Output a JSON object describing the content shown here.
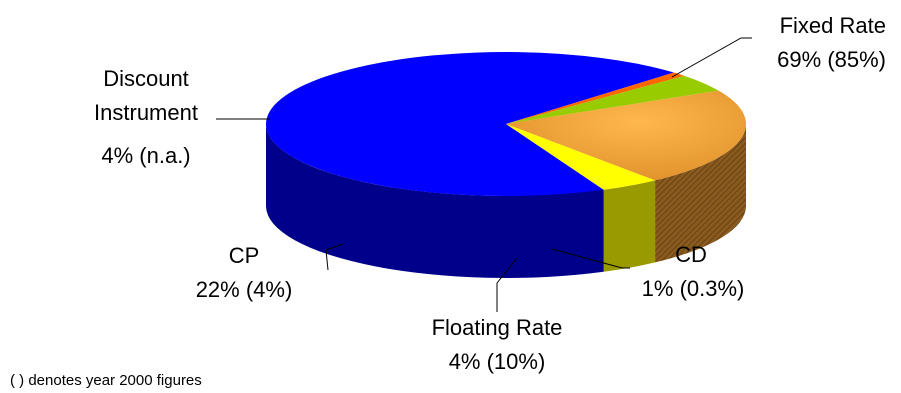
{
  "chart_data": {
    "type": "pie",
    "style": "3d-pie",
    "unit": "%",
    "slices": [
      {
        "name": "Fixed Rate",
        "value": 69,
        "value_label": "69%",
        "prior_label": "(85%)",
        "color": "#0000FF",
        "side_color": "#00008B"
      },
      {
        "name": "CD",
        "value": 1,
        "value_label": "1%",
        "prior_label": "(0.3%)",
        "color": "#FF6600",
        "side_color": "#993300"
      },
      {
        "name": "Floating Rate",
        "value": 4,
        "value_label": "4%",
        "prior_label": "(10%)",
        "color": "#99CC00",
        "side_color": "#4D6600"
      },
      {
        "name": "CP",
        "value": 22,
        "value_label": "22%",
        "prior_label": "(4%)",
        "color": "#FFAA33",
        "side_color": "#8A5A1E"
      },
      {
        "name": "Discount Instrument",
        "name_lines": [
          "Discount",
          "Instrument"
        ],
        "value": 4,
        "value_label": "4%",
        "prior_label": "(n.a.)",
        "color": "#FFFF00",
        "side_color": "#999900"
      }
    ],
    "legend": "none",
    "footnote": "( ) denotes year 2000 figures"
  }
}
